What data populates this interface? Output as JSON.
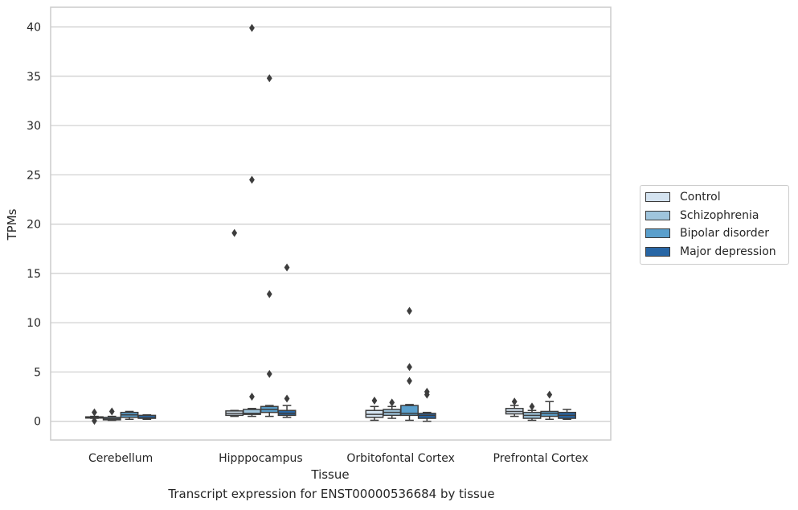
{
  "caption": "Transcript expression for ENST00000536684 by tissue",
  "chart_data": {
    "type": "box",
    "xlabel": "Tissue",
    "ylabel": "TPMs",
    "ylim": [
      -1.9,
      42
    ],
    "yticks": [
      0,
      5,
      10,
      15,
      20,
      25,
      30,
      35,
      40
    ],
    "grid": "horizontal",
    "legend_position": "right",
    "categories": [
      "Cerebellum",
      "Hipppocampus",
      "Orbitofontal Cortex",
      "Prefrontal Cortex"
    ],
    "series": [
      {
        "name": "Control",
        "color": "#d4e3f0",
        "boxes": [
          {
            "whislo": 0.3,
            "q1": 0.35,
            "med": 0.4,
            "q3": 0.45,
            "whishi": 0.5,
            "fliers": [
              0.9,
              0.05
            ]
          },
          {
            "whislo": 0.5,
            "q1": 0.6,
            "med": 0.8,
            "q3": 1.05,
            "whishi": 1.1,
            "fliers": [
              19.1
            ]
          },
          {
            "whislo": 0.1,
            "q1": 0.4,
            "med": 0.7,
            "q3": 1.1,
            "whishi": 1.5,
            "fliers": [
              2.1
            ]
          },
          {
            "whislo": 0.5,
            "q1": 0.75,
            "med": 1.0,
            "q3": 1.3,
            "whishi": 1.6,
            "fliers": [
              2.0
            ]
          }
        ]
      },
      {
        "name": "Schizophrenia",
        "color": "#9fc5dd",
        "boxes": [
          {
            "whislo": 0.1,
            "q1": 0.15,
            "med": 0.25,
            "q3": 0.4,
            "whishi": 0.5,
            "fliers": [
              1.0
            ]
          },
          {
            "whislo": 0.5,
            "q1": 0.7,
            "med": 0.8,
            "q3": 1.2,
            "whishi": 1.3,
            "fliers": [
              39.9,
              24.5,
              2.5
            ]
          },
          {
            "whislo": 0.3,
            "q1": 0.6,
            "med": 0.9,
            "q3": 1.2,
            "whishi": 1.5,
            "fliers": [
              1.9
            ]
          },
          {
            "whislo": 0.1,
            "q1": 0.3,
            "med": 0.6,
            "q3": 0.9,
            "whishi": 1.1,
            "fliers": [
              1.5
            ]
          }
        ]
      },
      {
        "name": "Bipolar disorder",
        "color": "#5a9fcc",
        "boxes": [
          {
            "whislo": 0.2,
            "q1": 0.4,
            "med": 0.65,
            "q3": 0.9,
            "whishi": 1.0,
            "fliers": []
          },
          {
            "whislo": 0.5,
            "q1": 0.9,
            "med": 1.2,
            "q3": 1.5,
            "whishi": 1.6,
            "fliers": [
              34.8,
              12.9,
              4.8
            ]
          },
          {
            "whislo": 0.1,
            "q1": 0.6,
            "med": 0.8,
            "q3": 1.6,
            "whishi": 1.7,
            "fliers": [
              11.2,
              5.5,
              4.1
            ]
          },
          {
            "whislo": 0.2,
            "q1": 0.5,
            "med": 0.8,
            "q3": 1.0,
            "whishi": 2.0,
            "fliers": [
              2.7
            ]
          }
        ]
      },
      {
        "name": "Major depression",
        "color": "#2866a5",
        "boxes": [
          {
            "whislo": 0.2,
            "q1": 0.3,
            "med": 0.35,
            "q3": 0.6,
            "whishi": 0.65,
            "fliers": []
          },
          {
            "whislo": 0.4,
            "q1": 0.6,
            "med": 0.8,
            "q3": 1.1,
            "whishi": 1.6,
            "fliers": [
              15.6,
              2.3
            ]
          },
          {
            "whislo": 0.0,
            "q1": 0.3,
            "med": 0.6,
            "q3": 0.8,
            "whishi": 0.9,
            "fliers": [
              3.0,
              2.7
            ]
          },
          {
            "whislo": 0.2,
            "q1": 0.3,
            "med": 0.6,
            "q3": 0.9,
            "whishi": 1.2,
            "fliers": []
          }
        ]
      }
    ]
  }
}
